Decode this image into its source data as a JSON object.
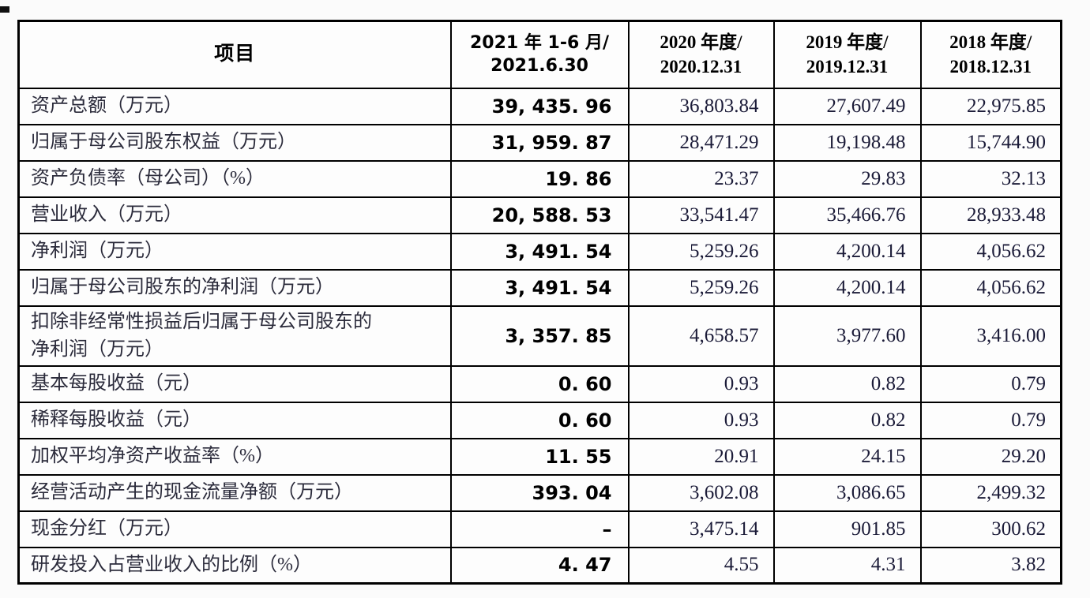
{
  "colors": {
    "border": "#000000",
    "label_text": "#2b2b3b",
    "number_text": "#1b1b38",
    "bold_text": "#000000",
    "background": "#fbfbfb"
  },
  "table": {
    "header": {
      "item": "项目",
      "periods": [
        {
          "line1": "2021 年 1-6 月/",
          "line2": "2021.6.30"
        },
        {
          "line1": "2020 年度/",
          "line2": "2020.12.31"
        },
        {
          "line1": "2019 年度/",
          "line2": "2019.12.31"
        },
        {
          "line1": "2018 年度/",
          "line2": "2018.12.31"
        }
      ]
    },
    "rows": [
      {
        "label": "资产总额（万元）",
        "tall": false,
        "values": [
          "39, 435. 96",
          "36,803.84",
          "27,607.49",
          "22,975.85"
        ]
      },
      {
        "label": "归属于母公司股东权益（万元）",
        "tall": false,
        "values": [
          "31, 959. 87",
          "28,471.29",
          "19,198.48",
          "15,744.90"
        ]
      },
      {
        "label": "资产负债率（母公司）（%）",
        "tall": false,
        "values": [
          "19. 86",
          "23.37",
          "29.83",
          "32.13"
        ]
      },
      {
        "label": "营业收入（万元）",
        "tall": false,
        "values": [
          "20, 588. 53",
          "33,541.47",
          "35,466.76",
          "28,933.48"
        ]
      },
      {
        "label": "净利润（万元）",
        "tall": false,
        "values": [
          "3, 491. 54",
          "5,259.26",
          "4,200.14",
          "4,056.62"
        ]
      },
      {
        "label": "归属于母公司股东的净利润（万元）",
        "tall": false,
        "values": [
          "3, 491. 54",
          "5,259.26",
          "4,200.14",
          "4,056.62"
        ]
      },
      {
        "label": "扣除非经常性损益后归属于母公司股东的\n净利润（万元）",
        "tall": true,
        "values": [
          "3, 357. 85",
          "4,658.57",
          "3,977.60",
          "3,416.00"
        ]
      },
      {
        "label": "基本每股收益（元）",
        "tall": false,
        "values": [
          "0. 60",
          "0.93",
          "0.82",
          "0.79"
        ]
      },
      {
        "label": "稀释每股收益（元）",
        "tall": false,
        "values": [
          "0. 60",
          "0.93",
          "0.82",
          "0.79"
        ]
      },
      {
        "label": "加权平均净资产收益率（%）",
        "tall": false,
        "values": [
          "11. 55",
          "20.91",
          "24.15",
          "29.20"
        ]
      },
      {
        "label": "经营活动产生的现金流量净额（万元）",
        "tall": false,
        "values": [
          "393. 04",
          "3,602.08",
          "3,086.65",
          "2,499.32"
        ]
      },
      {
        "label": "现金分红（万元）",
        "tall": false,
        "values": [
          "–",
          "3,475.14",
          "901.85",
          "300.62"
        ]
      },
      {
        "label": "研发投入占营业收入的比例（%）",
        "tall": false,
        "values": [
          "4. 47",
          "4.55",
          "4.31",
          "3.82"
        ]
      }
    ]
  }
}
